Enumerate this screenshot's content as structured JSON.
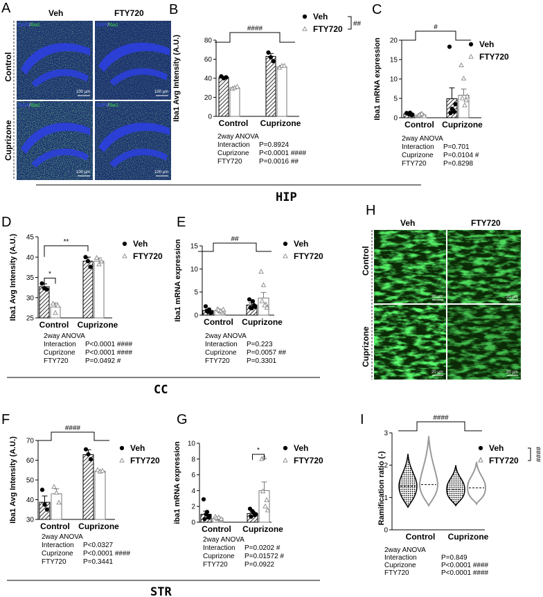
{
  "sections": [
    "HIP",
    "CC",
    "STR"
  ],
  "image_panels": {
    "A": {
      "cols": [
        "Veh",
        "FTY720"
      ],
      "rows": [
        "Control",
        "Cuprizone"
      ],
      "stain": [
        "DAPI",
        "/",
        "Iba1"
      ],
      "scale": "100 µm"
    },
    "H": {
      "cols": [
        "Veh",
        "FTY720"
      ],
      "rows": [
        "Control",
        "Cuprizone"
      ],
      "scale": "20 µm"
    }
  },
  "legend": {
    "veh": "Veh",
    "fty": "FTY720"
  },
  "colors": {
    "hip_blue": "#1f2fc8",
    "hip_green": "#3fa84a",
    "iba_green": "#19d61c",
    "fty_grey": "#888888"
  },
  "chart_data": [
    {
      "panel": "B",
      "type": "bar",
      "title": "",
      "ylabel": "Iba1 Avg Intensity (A.U.)",
      "ylim": [
        0,
        80
      ],
      "yticks": [
        0,
        20,
        40,
        60,
        80
      ],
      "categories": [
        "Control",
        "Cuprizone"
      ],
      "series": [
        {
          "name": "Veh",
          "values": [
            41,
            63
          ]
        },
        {
          "name": "FTY720",
          "values": [
            30,
            52
          ]
        }
      ],
      "points": [
        [
          [
            42,
            40,
            41
          ],
          [
            29,
            30,
            31
          ]
        ],
        [
          [
            67,
            62,
            58
          ],
          [
            51,
            53,
            53
          ]
        ]
      ],
      "errors": [
        [
          1,
          1
        ],
        [
          3,
          1.5
        ]
      ],
      "brackets": [
        {
          "between": "Control-Cuprizone",
          "label": "####"
        },
        {
          "between": "Veh-FTY720",
          "label": "##"
        }
      ],
      "stats": {
        "title": "2way ANOVA",
        "rows": [
          [
            "Interaction",
            "P=0.8924"
          ],
          [
            "Cuprizone",
            "P<0.0001 ####"
          ],
          [
            "FTY720",
            "P=0.0016 ##"
          ]
        ]
      }
    },
    {
      "panel": "C",
      "type": "bar",
      "title": "",
      "ylabel": "Iba1 mRNA expression",
      "ylim": [
        0,
        20
      ],
      "yticks": [
        0,
        5,
        10,
        15,
        20
      ],
      "categories": [
        "Control",
        "Cuprizone"
      ],
      "series": [
        {
          "name": "Veh",
          "values": [
            1.0,
            4.9
          ]
        },
        {
          "name": "FTY720",
          "values": [
            0.7,
            5.8
          ]
        }
      ],
      "points": [
        [
          [
            1.2,
            0.9,
            0.7,
            1.1,
            1.3,
            0.8
          ],
          [
            0.5,
            0.9,
            0.6,
            0.7,
            1.0,
            0.4
          ]
        ],
        [
          [
            18.3,
            2.3,
            1.5,
            1.2,
            2.0,
            3.5
          ],
          [
            13.5,
            10.1,
            4.5,
            5.0,
            3.2,
            5.5
          ]
        ]
      ],
      "errors": [
        [
          0.15,
          0.1
        ],
        [
          2.8,
          1.6
        ]
      ],
      "brackets": [
        {
          "between": "Control-Cuprizone",
          "label": "#"
        }
      ],
      "stats": {
        "title": "2way ANOVA",
        "rows": [
          [
            "Interaction",
            "P=0.701"
          ],
          [
            "Cuprizone",
            "P=0.0104 #"
          ],
          [
            "FTY720",
            "P=0.8298"
          ]
        ]
      }
    },
    {
      "panel": "D",
      "type": "bar",
      "title": "",
      "ylabel": "Iba1 Avg Intensity (A.U.)",
      "ylim": [
        25,
        45
      ],
      "yticks": [
        25,
        30,
        35,
        40,
        45
      ],
      "categories": [
        "Control",
        "Cuprizone"
      ],
      "series": [
        {
          "name": "Veh",
          "values": [
            32.7,
            39.0
          ]
        },
        {
          "name": "FTY720",
          "values": [
            27.7,
            39.0
          ]
        }
      ],
      "points": [
        [
          [
            33.5,
            32.3,
            32.0
          ],
          [
            28.5,
            26.2,
            28.0
          ]
        ],
        [
          [
            40.0,
            39.0,
            37.6
          ],
          [
            39.8,
            38.2,
            38.9
          ]
        ]
      ],
      "errors": [
        [
          0.7,
          1.0
        ],
        [
          1.0,
          0.8
        ]
      ],
      "brackets": [
        {
          "between": "Veh-FTY720 Control",
          "label": "*"
        },
        {
          "between": "Control-Cuprizone Veh",
          "label": "**"
        }
      ],
      "stats": {
        "title": "2way ANOVA",
        "rows": [
          [
            "Interaction",
            "P<0.0001 ####"
          ],
          [
            "Cuprizone",
            "P<0.0001 ####"
          ],
          [
            "FTY720",
            "P=0.0492 #"
          ]
        ]
      }
    },
    {
      "panel": "E",
      "type": "bar",
      "title": "",
      "ylabel": "Iba1 mRNA expression",
      "ylim": [
        0,
        15
      ],
      "yticks": [
        0,
        5,
        10,
        15
      ],
      "categories": [
        "Control",
        "Cuprizone"
      ],
      "series": [
        {
          "name": "Veh",
          "values": [
            1.0,
            2.2
          ]
        },
        {
          "name": "FTY720",
          "values": [
            1.0,
            3.7
          ]
        }
      ],
      "points": [
        [
          [
            1.9,
            0.7,
            0.5,
            0.9,
            1.2,
            0.6
          ],
          [
            1.3,
            0.8,
            0.6,
            1.1,
            0.9,
            1.2
          ]
        ],
        [
          [
            3.4,
            1.5,
            2.1,
            1.6,
            3.0,
            1.8
          ],
          [
            9.4,
            6.5,
            2.3,
            3.0,
            2.1,
            1.6
          ]
        ]
      ],
      "errors": [
        [
          0.25,
          0.12
        ],
        [
          0.45,
          1.2
        ]
      ],
      "brackets": [
        {
          "between": "Control-Cuprizone",
          "label": "##"
        }
      ],
      "stats": {
        "title": "2way ANOVA",
        "rows": [
          [
            "Interaction",
            "P=0.223"
          ],
          [
            "Cuprizone",
            "P=0.0057 ##"
          ],
          [
            "FTY720",
            "P=0.3301"
          ]
        ]
      }
    },
    {
      "panel": "F",
      "type": "bar",
      "title": "",
      "ylabel": "Iba1 Avg Intensity (A.U.)",
      "ylim": [
        30,
        70
      ],
      "yticks": [
        30,
        40,
        50,
        60,
        70
      ],
      "categories": [
        "Control",
        "Cuprizone"
      ],
      "series": [
        {
          "name": "Veh",
          "values": [
            38.7,
            62.8
          ]
        },
        {
          "name": "FTY720",
          "values": [
            43.0,
            54.5
          ]
        }
      ],
      "points": [
        [
          [
            45.0,
            37.5,
            35.0
          ],
          [
            46.5,
            43.5,
            38.5
          ]
        ],
        [
          [
            65.5,
            63.0,
            60.5
          ],
          [
            55.0,
            54.2,
            54.6
          ]
        ]
      ],
      "errors": [
        [
          3.2,
          2.5
        ],
        [
          2.5,
          0.4
        ]
      ],
      "brackets": [
        {
          "between": "Control-Cuprizone",
          "label": "####"
        }
      ],
      "stats": {
        "title": "2way ANOVA",
        "rows": [
          [
            "Interaction",
            "P<0.0327"
          ],
          [
            "Cuprizone",
            "P<0.0001 ####"
          ],
          [
            "FTY720",
            "P=0.3441"
          ]
        ]
      }
    },
    {
      "panel": "G",
      "type": "bar",
      "title": "",
      "ylabel": "iba1 mRNA expression",
      "ylim": [
        0,
        10
      ],
      "yticks": [
        0,
        2,
        4,
        6,
        8,
        10
      ],
      "categories": [
        "Control",
        "Cuprizone"
      ],
      "series": [
        {
          "name": "Veh",
          "values": [
            1.0,
            1.1
          ]
        },
        {
          "name": "FTY720",
          "values": [
            0.5,
            4.0
          ]
        }
      ],
      "points": [
        [
          [
            2.9,
            1.0,
            0.6,
            0.4,
            1.3,
            0.8
          ],
          [
            0.7,
            0.4,
            0.3,
            0.5,
            0.6,
            0.4
          ]
        ],
        [
          [
            1.7,
            1.4,
            0.9,
            0.7,
            1.2,
            1.0
          ],
          [
            8.0,
            8.2,
            2.8,
            3.9,
            2.0,
            1.5
          ]
        ]
      ],
      "errors": [
        [
          0.4,
          0.08
        ],
        [
          0.18,
          1.1
        ]
      ],
      "brackets": [
        {
          "between": "Veh-FTY720 Cuprizone",
          "label": "*"
        }
      ],
      "stats": {
        "title": "2way ANOVA",
        "rows": [
          [
            "Interaction",
            "P=0.0202 #"
          ],
          [
            "Cuprizone",
            "P=0.01572 #"
          ],
          [
            "FTY720",
            "P=0.0922"
          ]
        ]
      }
    },
    {
      "panel": "I",
      "type": "violin",
      "title": "",
      "ylabel": "Ramification ratio (-)",
      "ylim": [
        0,
        3
      ],
      "yticks": [
        0,
        1,
        2,
        3
      ],
      "categories": [
        "Control",
        "Cuprizone"
      ],
      "series": [
        {
          "name": "Veh",
          "median": [
            1.35,
            1.25
          ],
          "range": [
            [
              0.7,
              2.35
            ],
            [
              0.75,
              2.0
            ]
          ]
        },
        {
          "name": "FTY720",
          "median": [
            1.4,
            1.3
          ],
          "range": [
            [
              0.75,
              2.9
            ],
            [
              0.8,
              2.1
            ]
          ]
        }
      ],
      "brackets": [
        {
          "between": "Control-Cuprizone",
          "label": "####"
        },
        {
          "between": "Veh-FTY720",
          "label": "####"
        }
      ],
      "stats": {
        "title": "2way ANOVA",
        "rows": [
          [
            "Interaction",
            "P=0.849"
          ],
          [
            "Cuprizone",
            "P<0.0001 ####"
          ],
          [
            "FTY720",
            "P<0.0001 ####"
          ]
        ]
      }
    }
  ]
}
